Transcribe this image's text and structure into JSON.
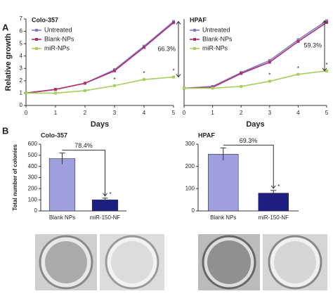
{
  "panel_labels": [
    "A",
    "B"
  ],
  "chart_data": [
    {
      "type": "line",
      "title": "Colo-357",
      "x_label": "Days",
      "y_label": "Relative growth",
      "x": [
        0,
        1,
        2,
        3,
        4,
        5
      ],
      "xlim": [
        0,
        5
      ],
      "xticks": [
        0,
        1,
        2,
        3,
        4,
        5
      ],
      "ylim": [
        0,
        7
      ],
      "yticks": [
        0,
        1,
        2,
        3,
        4,
        5,
        6,
        7
      ],
      "marker_label": "*",
      "annotation": "66.3%",
      "series": [
        {
          "name": "Untreated",
          "color": "#7f7fc4",
          "values": [
            1,
            1.3,
            1.8,
            2.9,
            4.8,
            6.8
          ]
        },
        {
          "name": "Blank-NPs",
          "color": "#b02f6e",
          "values": [
            1,
            1.3,
            1.8,
            2.8,
            4.7,
            6.7
          ]
        },
        {
          "name": "miR-NPs",
          "color": "#a6cf5e",
          "values": [
            1,
            1.0,
            1.2,
            1.6,
            2.1,
            2.3
          ]
        }
      ]
    },
    {
      "type": "line",
      "title": "HPAF",
      "x_label": "Days",
      "x": [
        0,
        1,
        2,
        3,
        4,
        5
      ],
      "xlim": [
        0,
        5
      ],
      "xticks": [
        0,
        1,
        2,
        3,
        4,
        5
      ],
      "ylim": [
        0,
        5
      ],
      "marker_label": "*",
      "annotation": "59.3%",
      "series": [
        {
          "name": "Untreated",
          "color": "#7f7fc4",
          "values": [
            1,
            1.1,
            1.9,
            2.6,
            3.8,
            4.9
          ]
        },
        {
          "name": "Blank-NPs",
          "color": "#b02f6e",
          "values": [
            1,
            1.05,
            1.85,
            2.5,
            3.7,
            4.8
          ]
        },
        {
          "name": "miR-NPs",
          "color": "#a6cf5e",
          "values": [
            1,
            1.0,
            1.1,
            1.4,
            1.8,
            2.0
          ]
        }
      ]
    },
    {
      "type": "bar",
      "title": "Colo-357",
      "y_label": "Total number of colonies",
      "categories": [
        "Blank NPs",
        "miR-150-NF"
      ],
      "values": [
        470,
        100
      ],
      "errors": [
        50,
        15
      ],
      "colors": [
        "#9f9fe0",
        "#1e1e80"
      ],
      "ylim": [
        0,
        600
      ],
      "yticks": [
        0,
        100,
        200,
        300,
        400,
        500,
        600
      ],
      "marker_label": "*",
      "annotation": "78.4%"
    },
    {
      "type": "bar",
      "title": "HPAF",
      "categories": [
        "Blank NPs",
        "miR-150-NF"
      ],
      "values": [
        255,
        80
      ],
      "errors": [
        28,
        12
      ],
      "colors": [
        "#9f9fe0",
        "#1e1e80"
      ],
      "ylim": [
        0,
        300
      ],
      "yticks": [
        0,
        100,
        200,
        300
      ],
      "marker_label": "*",
      "annotation": "69.3%"
    }
  ]
}
